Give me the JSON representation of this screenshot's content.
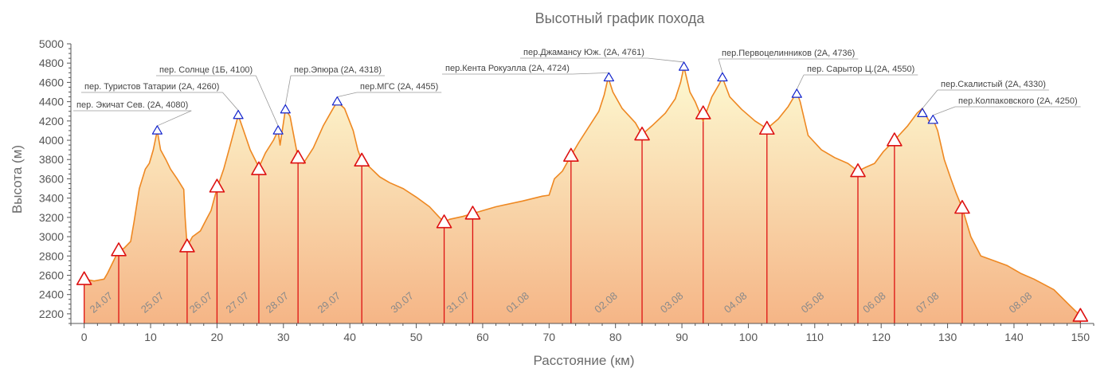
{
  "chart_data": {
    "type": "area",
    "title": "Высотный график похода",
    "xlabel": "Расстояние (км)",
    "ylabel": "Высота (м)",
    "xlim": [
      -2,
      152
    ],
    "ylim": [
      2100,
      5000
    ],
    "xticks": [
      0,
      10,
      20,
      30,
      40,
      50,
      60,
      70,
      80,
      90,
      100,
      110,
      120,
      130,
      140,
      150
    ],
    "yticks": [
      2200,
      2400,
      2600,
      2800,
      3000,
      3200,
      3400,
      3600,
      3800,
      4000,
      4200,
      4400,
      4600,
      4800,
      5000
    ],
    "grid": false,
    "colors": {
      "line": "#ee8822",
      "fill_top": "#fcf7c6",
      "fill_bottom": "#f6b98a",
      "camp": "#dd1111",
      "pass": "#1122cc",
      "axis": "#555555"
    },
    "profile": [
      [
        0,
        2560
      ],
      [
        1.5,
        2540
      ],
      [
        3,
        2560
      ],
      [
        3.5,
        2620
      ],
      [
        4.5,
        2760
      ],
      [
        5.2,
        2860
      ],
      [
        6,
        2880
      ],
      [
        7,
        2950
      ],
      [
        7.5,
        3150
      ],
      [
        8.3,
        3500
      ],
      [
        9.2,
        3700
      ],
      [
        9.8,
        3760
      ],
      [
        10.4,
        3900
      ],
      [
        11,
        4100
      ],
      [
        11.5,
        3900
      ],
      [
        12.3,
        3800
      ],
      [
        13,
        3700
      ],
      [
        14,
        3600
      ],
      [
        15,
        3490
      ],
      [
        15.2,
        3200
      ],
      [
        15.5,
        2900
      ],
      [
        16.3,
        3000
      ],
      [
        17.5,
        3060
      ],
      [
        18.4,
        3180
      ],
      [
        19.1,
        3270
      ],
      [
        20,
        3500
      ],
      [
        21,
        3700
      ],
      [
        22,
        3950
      ],
      [
        23.2,
        4260
      ],
      [
        24,
        4100
      ],
      [
        25,
        3900
      ],
      [
        26.3,
        3720
      ],
      [
        27.3,
        3870
      ],
      [
        28.5,
        4000
      ],
      [
        29.2,
        4100
      ],
      [
        29.5,
        3950
      ],
      [
        30.3,
        4318
      ],
      [
        31,
        4250
      ],
      [
        32.2,
        3820
      ],
      [
        33,
        3760
      ],
      [
        34.5,
        3920
      ],
      [
        36,
        4150
      ],
      [
        37.4,
        4320
      ],
      [
        38.1,
        4400
      ],
      [
        39.2,
        4330
      ],
      [
        40.5,
        4100
      ],
      [
        41.2,
        3900
      ],
      [
        41.8,
        3790
      ],
      [
        43,
        3720
      ],
      [
        44.5,
        3620
      ],
      [
        46,
        3560
      ],
      [
        48,
        3500
      ],
      [
        50,
        3410
      ],
      [
        52,
        3310
      ],
      [
        53.5,
        3200
      ],
      [
        54.2,
        3150
      ],
      [
        55,
        3180
      ],
      [
        57,
        3210
      ],
      [
        58.5,
        3240
      ],
      [
        62,
        3310
      ],
      [
        66,
        3370
      ],
      [
        69,
        3420
      ],
      [
        70,
        3430
      ],
      [
        70.8,
        3600
      ],
      [
        72,
        3680
      ],
      [
        73.3,
        3840
      ],
      [
        74.5,
        3980
      ],
      [
        76,
        4140
      ],
      [
        77.5,
        4300
      ],
      [
        78.3,
        4470
      ],
      [
        78.9,
        4650
      ],
      [
        79.6,
        4500
      ],
      [
        81,
        4330
      ],
      [
        83,
        4180
      ],
      [
        84,
        4060
      ],
      [
        85.5,
        4150
      ],
      [
        87.5,
        4280
      ],
      [
        89,
        4430
      ],
      [
        89.8,
        4600
      ],
      [
        90.3,
        4761
      ],
      [
        91.2,
        4500
      ],
      [
        92,
        4400
      ],
      [
        93.2,
        4200
      ],
      [
        94.5,
        4450
      ],
      [
        95.6,
        4580
      ],
      [
        96.1,
        4650
      ],
      [
        97.2,
        4450
      ],
      [
        99,
        4320
      ],
      [
        101,
        4200
      ],
      [
        102.8,
        4120
      ],
      [
        104.5,
        4220
      ],
      [
        106,
        4350
      ],
      [
        107.3,
        4500
      ],
      [
        107.8,
        4400
      ],
      [
        109,
        4050
      ],
      [
        111,
        3900
      ],
      [
        113,
        3820
      ],
      [
        115,
        3760
      ],
      [
        116.5,
        3680
      ],
      [
        117.7,
        3720
      ],
      [
        119,
        3760
      ],
      [
        120.3,
        3880
      ],
      [
        122,
        4000
      ],
      [
        124,
        4150
      ],
      [
        125.4,
        4280
      ],
      [
        126.2,
        4330
      ],
      [
        127.2,
        4200
      ],
      [
        127.8,
        4220
      ],
      [
        128.5,
        4100
      ],
      [
        129.5,
        3800
      ],
      [
        130.5,
        3600
      ],
      [
        131.3,
        3450
      ],
      [
        132.2,
        3300
      ],
      [
        133.5,
        3000
      ],
      [
        135,
        2800
      ],
      [
        137,
        2750
      ],
      [
        139,
        2700
      ],
      [
        141,
        2620
      ],
      [
        143,
        2560
      ],
      [
        146,
        2450
      ],
      [
        148.5,
        2280
      ],
      [
        150,
        2180
      ]
    ],
    "passes": [
      {
        "x": 11,
        "y": 4100,
        "label": "пер. Экичат Сев. (2А, 4080)"
      },
      {
        "x": 23.2,
        "y": 4260,
        "label": "пер. Туристов Татарии (2А, 4260)"
      },
      {
        "x": 29.2,
        "y": 4100,
        "label": "пер. Солнце (1Б, 4100)"
      },
      {
        "x": 30.3,
        "y": 4318,
        "label": "пер.Эпюра (2А, 4318)"
      },
      {
        "x": 38.1,
        "y": 4400,
        "label": "пер.МГС (2А, 4455)"
      },
      {
        "x": 79,
        "y": 4650,
        "label": "пер.Кента Рокуэлла (2А, 4724)"
      },
      {
        "x": 90.3,
        "y": 4761,
        "label": "пер.Джамансу Юж. (2А, 4761)"
      },
      {
        "x": 96.1,
        "y": 4650,
        "label": "пер.Первоцелинников (2А, 4736)"
      },
      {
        "x": 107.3,
        "y": 4480,
        "label": "пер. Сарытор Ц.(2А, 4550)"
      },
      {
        "x": 126.2,
        "y": 4280,
        "label": "пер.Скалистый (2А, 4330)"
      },
      {
        "x": 127.8,
        "y": 4210,
        "label": "пер.Колпаковского (2А, 4250)"
      }
    ],
    "camps": [
      {
        "x": 0,
        "y": 2560
      },
      {
        "x": 5.2,
        "y": 2860
      },
      {
        "x": 15.5,
        "y": 2900
      },
      {
        "x": 20,
        "y": 3520
      },
      {
        "x": 26.3,
        "y": 3700
      },
      {
        "x": 32.2,
        "y": 3820
      },
      {
        "x": 41.8,
        "y": 3790
      },
      {
        "x": 54.2,
        "y": 3150
      },
      {
        "x": 58.5,
        "y": 3240
      },
      {
        "x": 73.3,
        "y": 3840
      },
      {
        "x": 84,
        "y": 4060
      },
      {
        "x": 93.2,
        "y": 4280
      },
      {
        "x": 102.8,
        "y": 4120
      },
      {
        "x": 116.5,
        "y": 3680
      },
      {
        "x": 122,
        "y": 4000
      },
      {
        "x": 132.2,
        "y": 3300
      },
      {
        "x": 150,
        "y": 2180
      }
    ],
    "days": [
      {
        "x": 2.9,
        "label": "24.07"
      },
      {
        "x": 10.6,
        "label": "25.07"
      },
      {
        "x": 17.9,
        "label": "26.07"
      },
      {
        "x": 23.4,
        "label": "27.07"
      },
      {
        "x": 29.4,
        "label": "28.07"
      },
      {
        "x": 37.2,
        "label": "29.07"
      },
      {
        "x": 48.2,
        "label": "30.07"
      },
      {
        "x": 56.6,
        "label": "31.07"
      },
      {
        "x": 65.6,
        "label": "01.08"
      },
      {
        "x": 78.9,
        "label": "02.08"
      },
      {
        "x": 88.8,
        "label": "03.08"
      },
      {
        "x": 98.4,
        "label": "04.08"
      },
      {
        "x": 110,
        "label": "05.08"
      },
      {
        "x": 119.3,
        "label": "06.08"
      },
      {
        "x": 127.3,
        "label": "07.08"
      },
      {
        "x": 141.3,
        "label": "08.08"
      }
    ]
  }
}
